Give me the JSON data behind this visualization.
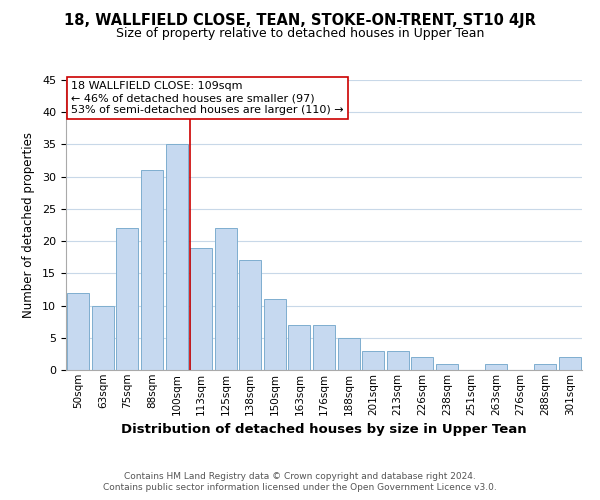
{
  "title": "18, WALLFIELD CLOSE, TEAN, STOKE-ON-TRENT, ST10 4JR",
  "subtitle": "Size of property relative to detached houses in Upper Tean",
  "xlabel": "Distribution of detached houses by size in Upper Tean",
  "ylabel": "Number of detached properties",
  "bar_labels": [
    "50sqm",
    "63sqm",
    "75sqm",
    "88sqm",
    "100sqm",
    "113sqm",
    "125sqm",
    "138sqm",
    "150sqm",
    "163sqm",
    "176sqm",
    "188sqm",
    "201sqm",
    "213sqm",
    "226sqm",
    "238sqm",
    "251sqm",
    "263sqm",
    "276sqm",
    "288sqm",
    "301sqm"
  ],
  "bar_values": [
    12,
    10,
    22,
    31,
    35,
    19,
    22,
    17,
    11,
    7,
    7,
    5,
    3,
    3,
    2,
    1,
    0,
    1,
    0,
    1,
    2
  ],
  "bar_color": "#c6d9f0",
  "bar_edge_color": "#7eaecf",
  "vline_x": 5,
  "vline_color": "#cc0000",
  "annotation_title": "18 WALLFIELD CLOSE: 109sqm",
  "annotation_line1": "← 46% of detached houses are smaller (97)",
  "annotation_line2": "53% of semi-detached houses are larger (110) →",
  "ylim": [
    0,
    45
  ],
  "yticks": [
    0,
    5,
    10,
    15,
    20,
    25,
    30,
    35,
    40,
    45
  ],
  "footer1": "Contains HM Land Registry data © Crown copyright and database right 2024.",
  "footer2": "Contains public sector information licensed under the Open Government Licence v3.0.",
  "bg_color": "#ffffff",
  "grid_color": "#c8d8e8"
}
